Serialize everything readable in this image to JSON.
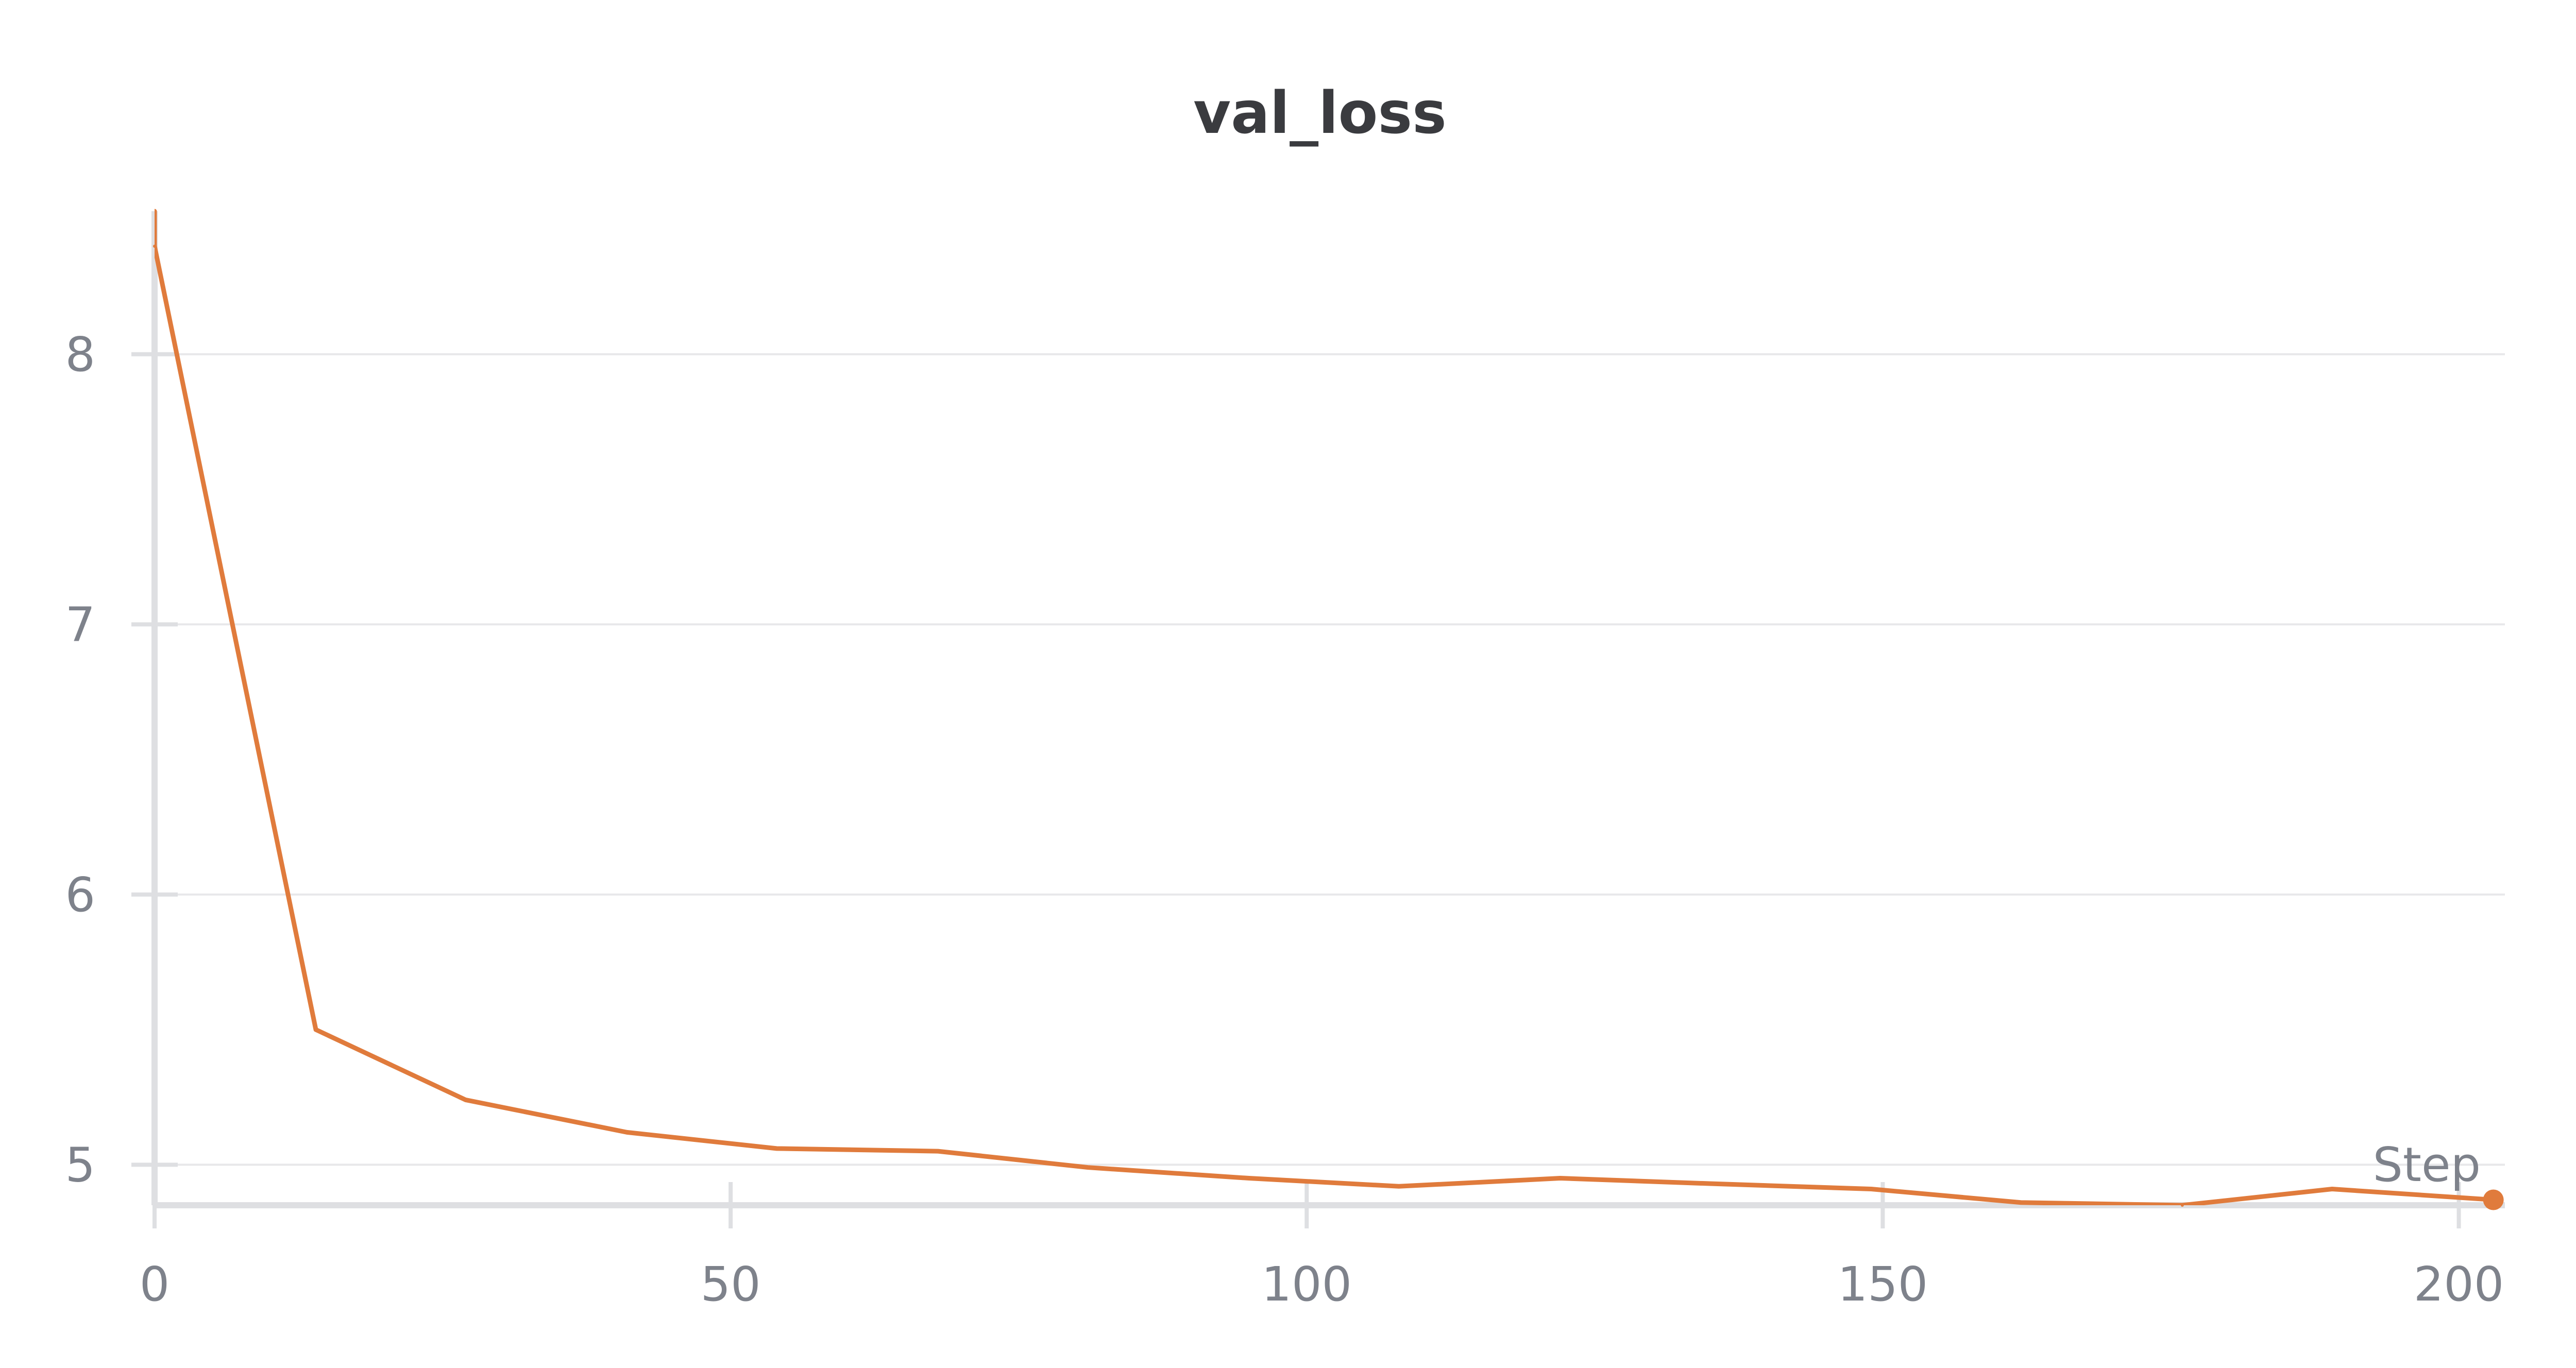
{
  "chart_data": {
    "type": "line",
    "title": "val_loss",
    "xlabel": "Step",
    "ylabel": "",
    "xlim": [
      0,
      204
    ],
    "ylim": [
      4.85,
      8.52
    ],
    "x_ticks": [
      0,
      50,
      100,
      150,
      200
    ],
    "y_ticks": [
      5,
      6,
      7,
      8
    ],
    "grid": true,
    "legend": "none",
    "series": [
      {
        "color": "#e07b3c",
        "x": [
          0,
          14,
          27,
          41,
          54,
          68,
          81,
          95,
          108,
          122,
          135,
          149,
          162,
          176,
          189,
          203
        ],
        "y": [
          8.4,
          5.5,
          5.24,
          5.12,
          5.06,
          5.05,
          4.99,
          4.95,
          4.92,
          4.95,
          4.93,
          4.91,
          4.86,
          4.85,
          4.91,
          4.87
        ]
      }
    ]
  }
}
